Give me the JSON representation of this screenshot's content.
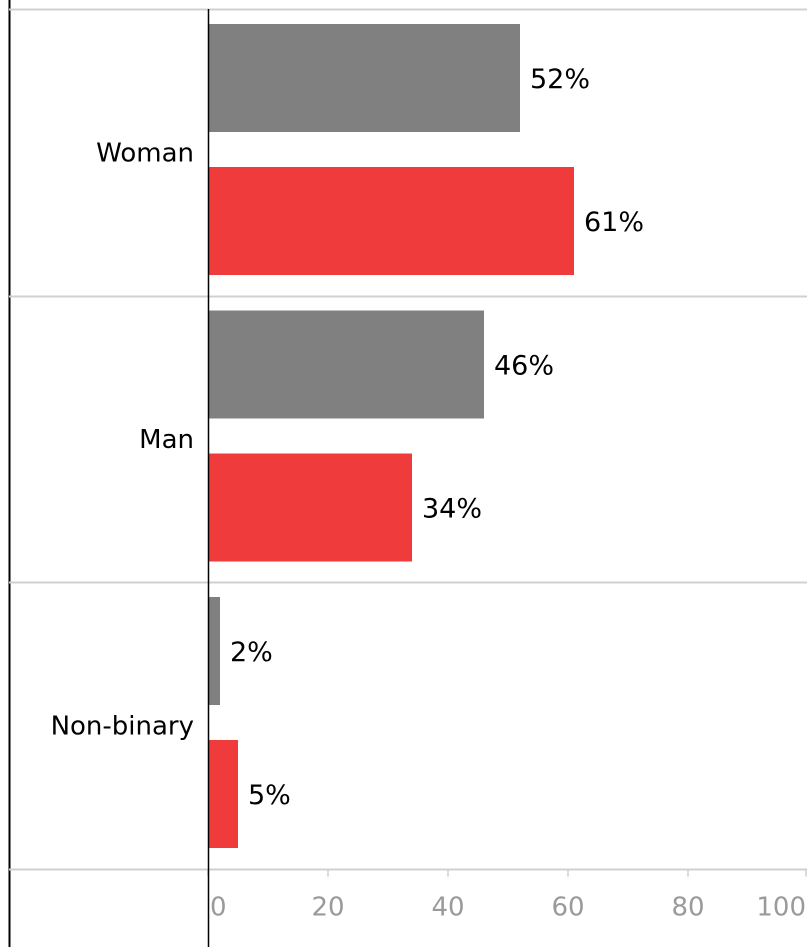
{
  "chart_data": {
    "type": "bar",
    "orientation": "horizontal",
    "categories": [
      "Woman",
      "Man",
      "Non-binary"
    ],
    "series": [
      {
        "color": "#808080",
        "values": [
          52,
          46,
          2
        ]
      },
      {
        "color": "#ef3b3b",
        "values": [
          61,
          34,
          5
        ]
      }
    ],
    "value_labels": [
      [
        "52%",
        "46%",
        "2%"
      ],
      [
        "61%",
        "34%",
        "5%"
      ]
    ],
    "xlim": [
      0,
      100
    ],
    "xticks": [
      0,
      20,
      40,
      60,
      80,
      100
    ],
    "xtick_labels": [
      "0",
      "20",
      "40",
      "60",
      "80",
      "100"
    ],
    "grid": "horizontal separators between categories",
    "legend": "none"
  }
}
